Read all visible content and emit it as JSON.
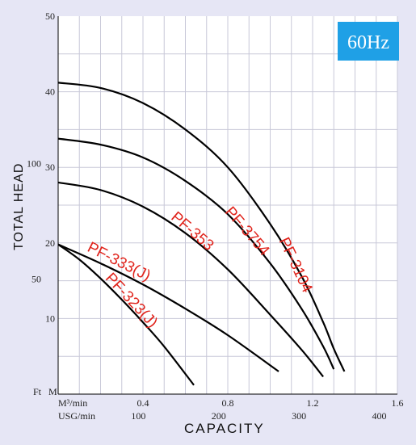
{
  "frequency_badge": "60Hz",
  "colors": {
    "background": "#e6e6f5",
    "plot_bg": "#ffffff",
    "grid": "#c8c8d8",
    "curve": "#000000",
    "label": "#e0231b",
    "badge": "#1fa0e6"
  },
  "chart_data": {
    "type": "line",
    "title": "",
    "xlabel": "CAPACITY",
    "ylabel": "TOTAL HEAD",
    "xlim": [
      0,
      1.6
    ],
    "ylim": [
      0,
      50
    ],
    "grid": true,
    "x_axis_label_primary": "M³/min",
    "x_axis_label_secondary": "USG/min",
    "y_axis_unit_primary": "M",
    "y_axis_unit_secondary": "Ft",
    "x_ticks_primary": [
      "0.4",
      "0.8",
      "1.2",
      "1.6"
    ],
    "x_ticks_secondary": [
      "100",
      "200",
      "300",
      "400"
    ],
    "y_ticks_primary": [
      "10",
      "20",
      "30",
      "40",
      "50"
    ],
    "y_ticks_secondary": [
      "50",
      "100"
    ],
    "series": [
      {
        "name": "PF-3104",
        "x": [
          0,
          0.2,
          0.4,
          0.6,
          0.8,
          1.0,
          1.15,
          1.25,
          1.3,
          1.35
        ],
        "y": [
          41.2,
          40.5,
          38.5,
          35.0,
          30.0,
          22.5,
          15.5,
          9.5,
          6.0,
          3.0
        ]
      },
      {
        "name": "PF-3754",
        "x": [
          0,
          0.2,
          0.4,
          0.6,
          0.8,
          1.0,
          1.15,
          1.25,
          1.3
        ],
        "y": [
          33.8,
          33.0,
          31.3,
          28.2,
          23.8,
          17.3,
          11.2,
          6.3,
          3.3
        ]
      },
      {
        "name": "PF-353",
        "x": [
          0,
          0.2,
          0.4,
          0.6,
          0.8,
          1.0,
          1.15,
          1.25
        ],
        "y": [
          28.0,
          27.0,
          24.8,
          21.3,
          16.5,
          10.5,
          5.8,
          2.3
        ]
      },
      {
        "name": "PF-333(J)",
        "x": [
          0,
          0.2,
          0.4,
          0.6,
          0.8,
          1.04
        ],
        "y": [
          19.8,
          17.3,
          14.5,
          11.3,
          7.8,
          3.0
        ]
      },
      {
        "name": "PF-323(J)",
        "x": [
          0,
          0.1,
          0.2,
          0.3,
          0.4,
          0.5,
          0.64
        ],
        "y": [
          19.8,
          17.8,
          15.3,
          12.5,
          9.5,
          6.3,
          1.2
        ]
      }
    ]
  }
}
